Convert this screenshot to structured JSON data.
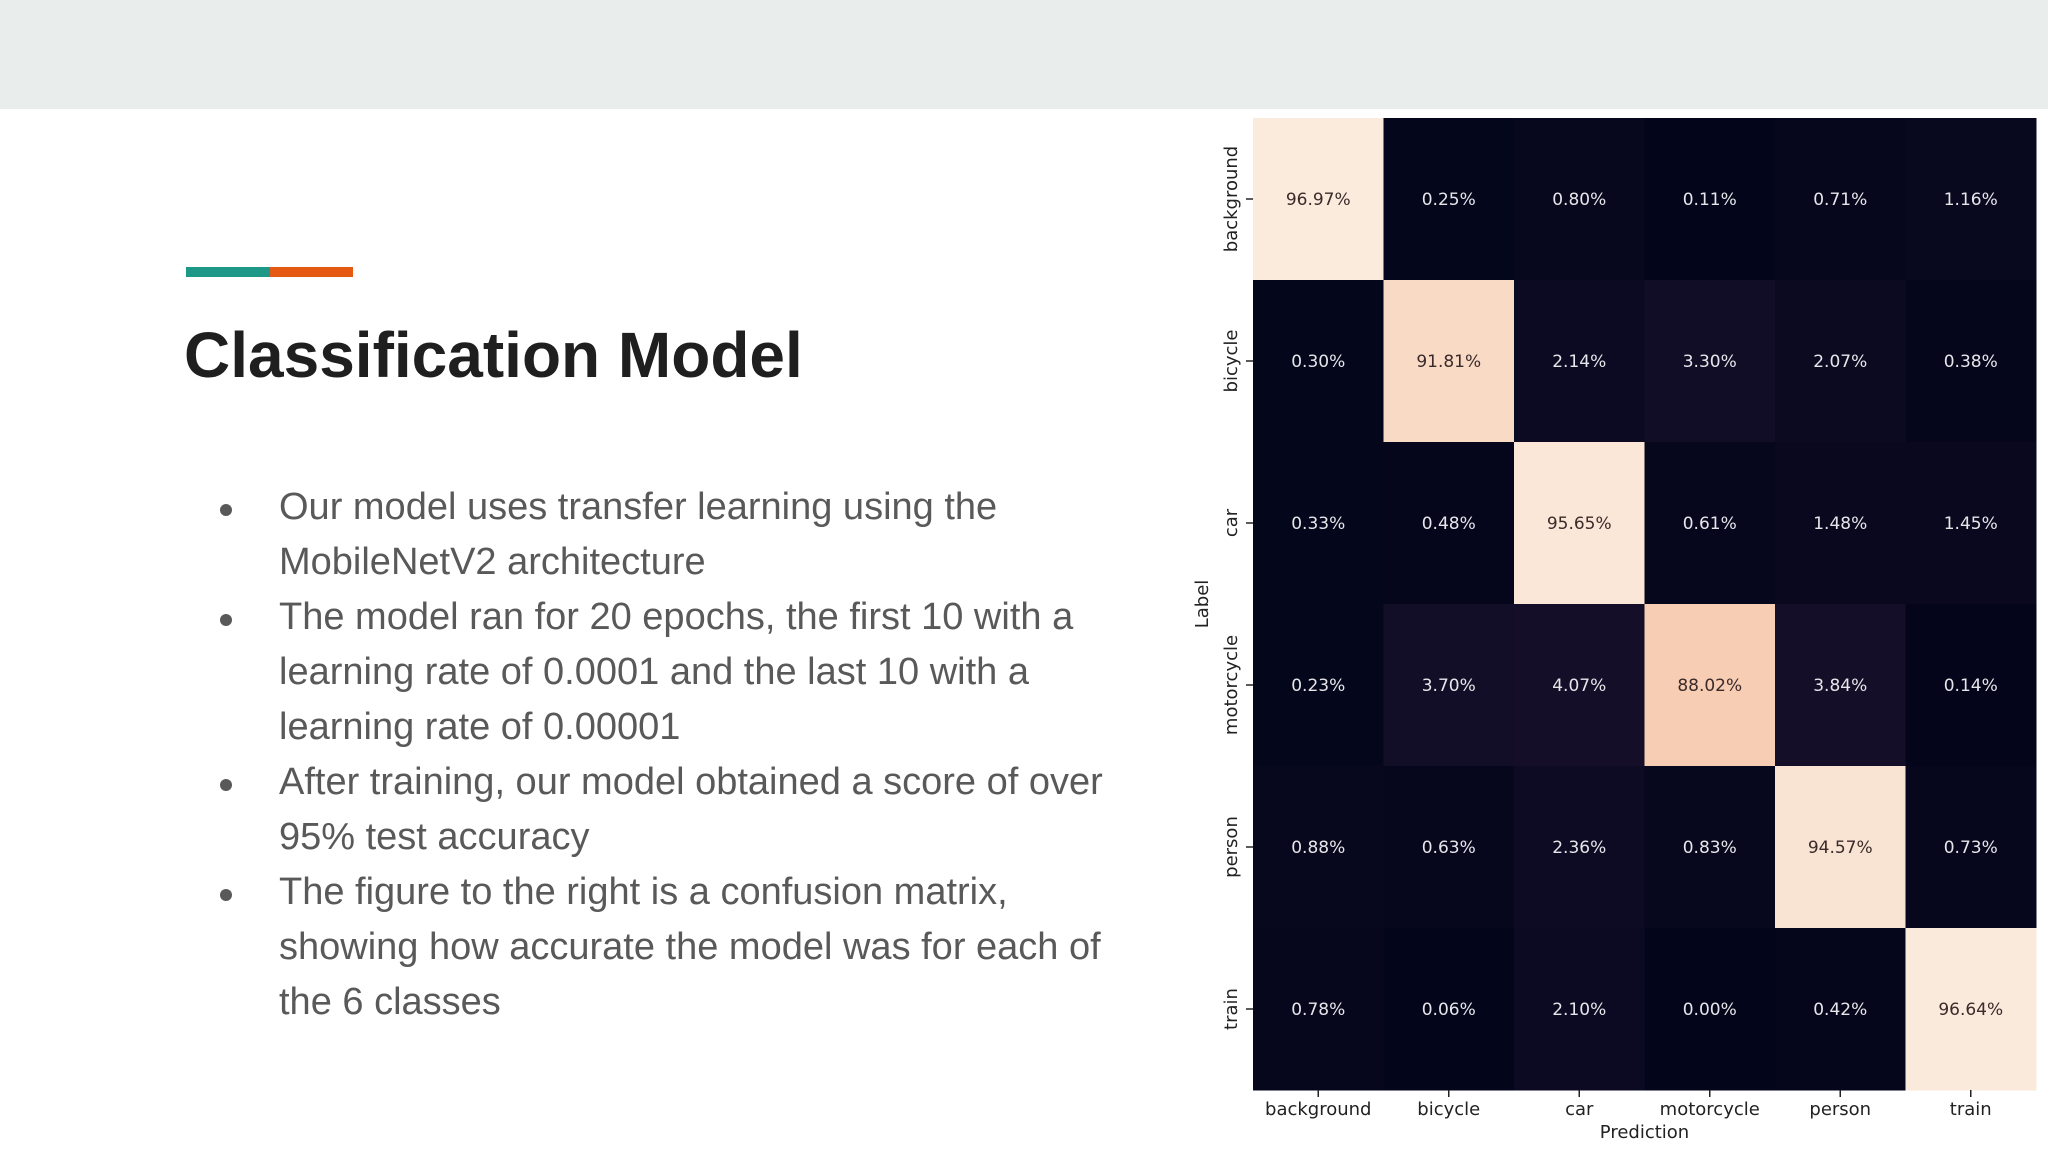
{
  "slide": {
    "title": "Classification Model",
    "accent_colors": [
      "#1e9987",
      "#e45a13"
    ],
    "bullets": [
      "Our model uses transfer learning using the MobileNetV2 architecture",
      "The model ran for 20 epochs, the first 10 with a learning rate of 0.0001 and the last 10 with a learning rate of 0.00001",
      "After training, our model obtained a score of over 95% test accuracy",
      "The figure to the right is a confusion matrix, showing how accurate the model was for each of the 6 classes"
    ]
  },
  "chart_data": {
    "type": "heatmap",
    "title": "",
    "xlabel": "Prediction",
    "ylabel": "Label",
    "x_categories": [
      "background",
      "bicycle",
      "car",
      "motorcycle",
      "person",
      "train"
    ],
    "y_categories": [
      "background",
      "bicycle",
      "car",
      "motorcycle",
      "person",
      "train"
    ],
    "values": [
      [
        96.97,
        0.25,
        0.8,
        0.11,
        0.71,
        1.16
      ],
      [
        0.3,
        91.81,
        2.14,
        3.3,
        2.07,
        0.38
      ],
      [
        0.33,
        0.48,
        95.65,
        0.61,
        1.48,
        1.45
      ],
      [
        0.23,
        3.7,
        4.07,
        88.02,
        3.84,
        0.14
      ],
      [
        0.88,
        0.63,
        2.36,
        0.83,
        94.57,
        0.73
      ],
      [
        0.78,
        0.06,
        2.1,
        0.0,
        0.42,
        96.64
      ]
    ],
    "value_format": "percent_2dp",
    "colormap": "rocket",
    "colorbar": false
  }
}
